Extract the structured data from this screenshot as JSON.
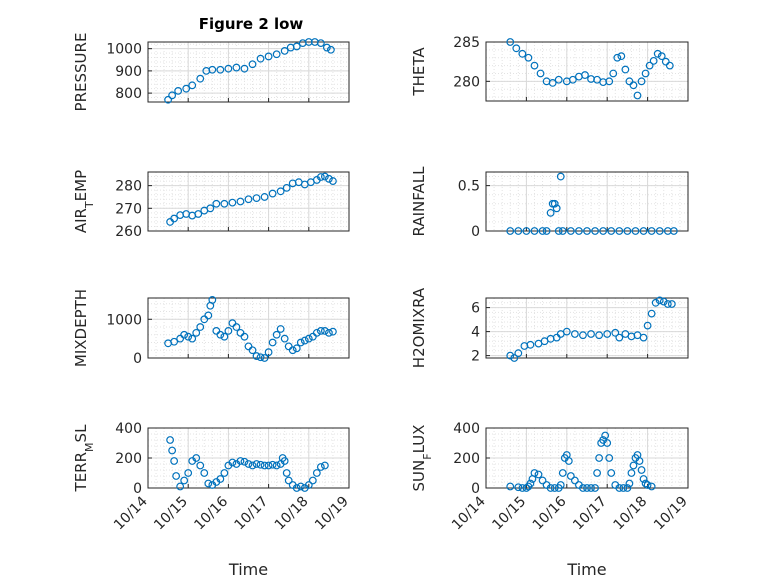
{
  "title": "Figure 2 low",
  "colors": {
    "marker": "#0072BD",
    "axis": "#262626",
    "grid": "#d9d9d9"
  },
  "chart_data": [
    {
      "type": "scatter",
      "ylabel": "PRESSURE",
      "ylim": [
        760,
        1030
      ],
      "yticks": [
        800,
        900,
        1000
      ],
      "points": [
        [
          14.5,
          770
        ],
        [
          14.6,
          790
        ],
        [
          14.75,
          810
        ],
        [
          14.95,
          820
        ],
        [
          15.1,
          835
        ],
        [
          15.3,
          865
        ],
        [
          15.45,
          900
        ],
        [
          15.6,
          905
        ],
        [
          15.8,
          905
        ],
        [
          16.0,
          910
        ],
        [
          16.2,
          915
        ],
        [
          16.4,
          910
        ],
        [
          16.6,
          930
        ],
        [
          16.8,
          955
        ],
        [
          17.0,
          965
        ],
        [
          17.2,
          975
        ],
        [
          17.4,
          990
        ],
        [
          17.55,
          1005
        ],
        [
          17.7,
          1010
        ],
        [
          17.85,
          1025
        ],
        [
          18.0,
          1030
        ],
        [
          18.15,
          1030
        ],
        [
          18.3,
          1025
        ],
        [
          18.45,
          1005
        ],
        [
          18.55,
          995
        ]
      ]
    },
    {
      "type": "scatter",
      "ylabel": "THETA",
      "ylim": [
        277.5,
        285
      ],
      "yticks": [
        280,
        285
      ],
      "points": [
        [
          14.6,
          285
        ],
        [
          14.75,
          284.2
        ],
        [
          14.9,
          283.5
        ],
        [
          15.05,
          283
        ],
        [
          15.2,
          282
        ],
        [
          15.35,
          281
        ],
        [
          15.5,
          280
        ],
        [
          15.65,
          279.8
        ],
        [
          15.8,
          280.2
        ],
        [
          16.0,
          280
        ],
        [
          16.15,
          280.2
        ],
        [
          16.3,
          280.6
        ],
        [
          16.45,
          280.8
        ],
        [
          16.6,
          280.3
        ],
        [
          16.75,
          280.2
        ],
        [
          16.9,
          279.9
        ],
        [
          17.05,
          280
        ],
        [
          17.15,
          281
        ],
        [
          17.25,
          283
        ],
        [
          17.35,
          283.2
        ],
        [
          17.45,
          281.5
        ],
        [
          17.55,
          280
        ],
        [
          17.65,
          279.5
        ],
        [
          17.75,
          278.2
        ],
        [
          17.85,
          280
        ],
        [
          17.95,
          281
        ],
        [
          18.05,
          282
        ],
        [
          18.15,
          282.6
        ],
        [
          18.25,
          283.5
        ],
        [
          18.35,
          283.2
        ],
        [
          18.45,
          282.5
        ],
        [
          18.55,
          282
        ]
      ]
    },
    {
      "type": "scatter",
      "ylabel": "AIR_TEMP",
      "ylim": [
        260,
        286
      ],
      "yticks": [
        260,
        270,
        280
      ],
      "points": [
        [
          14.55,
          264
        ],
        [
          14.65,
          265.5
        ],
        [
          14.8,
          267
        ],
        [
          14.95,
          267.5
        ],
        [
          15.1,
          266.8
        ],
        [
          15.25,
          267.5
        ],
        [
          15.4,
          269
        ],
        [
          15.55,
          270
        ],
        [
          15.7,
          272
        ],
        [
          15.9,
          272
        ],
        [
          16.1,
          272.5
        ],
        [
          16.3,
          273
        ],
        [
          16.5,
          274
        ],
        [
          16.7,
          274.5
        ],
        [
          16.9,
          275
        ],
        [
          17.1,
          276.5
        ],
        [
          17.3,
          277.5
        ],
        [
          17.45,
          279
        ],
        [
          17.6,
          281
        ],
        [
          17.75,
          281.5
        ],
        [
          17.9,
          280.5
        ],
        [
          18.05,
          281.5
        ],
        [
          18.2,
          282.5
        ],
        [
          18.3,
          283.8
        ],
        [
          18.4,
          284
        ],
        [
          18.5,
          283
        ],
        [
          18.6,
          282
        ]
      ]
    },
    {
      "type": "scatter",
      "ylabel": "RAINFALL",
      "ylim": [
        0,
        0.65
      ],
      "yticks": [
        0,
        0.5
      ],
      "points": [
        [
          14.6,
          0
        ],
        [
          14.8,
          0
        ],
        [
          15.0,
          0
        ],
        [
          15.2,
          0
        ],
        [
          15.4,
          0
        ],
        [
          15.5,
          0
        ],
        [
          15.6,
          0.2
        ],
        [
          15.65,
          0.3
        ],
        [
          15.7,
          0.3
        ],
        [
          15.75,
          0.25
        ],
        [
          15.8,
          0
        ],
        [
          15.85,
          0.6
        ],
        [
          15.9,
          0
        ],
        [
          16.1,
          0
        ],
        [
          16.3,
          0
        ],
        [
          16.5,
          0
        ],
        [
          16.7,
          0
        ],
        [
          16.9,
          0
        ],
        [
          17.1,
          0
        ],
        [
          17.3,
          0
        ],
        [
          17.5,
          0
        ],
        [
          17.7,
          0
        ],
        [
          17.9,
          0
        ],
        [
          18.1,
          0
        ],
        [
          18.3,
          0
        ],
        [
          18.5,
          0
        ],
        [
          18.65,
          0
        ]
      ]
    },
    {
      "type": "scatter",
      "ylabel": "MIXDEPTH",
      "ylim": [
        0,
        1550
      ],
      "yticks": [
        0,
        1000
      ],
      "points": [
        [
          14.5,
          380
        ],
        [
          14.65,
          420
        ],
        [
          14.8,
          500
        ],
        [
          14.9,
          600
        ],
        [
          15.0,
          550
        ],
        [
          15.1,
          500
        ],
        [
          15.2,
          650
        ],
        [
          15.3,
          800
        ],
        [
          15.4,
          1000
        ],
        [
          15.5,
          1100
        ],
        [
          15.55,
          1350
        ],
        [
          15.6,
          1500
        ],
        [
          15.7,
          700
        ],
        [
          15.8,
          600
        ],
        [
          15.9,
          550
        ],
        [
          16.0,
          700
        ],
        [
          16.1,
          900
        ],
        [
          16.2,
          800
        ],
        [
          16.3,
          650
        ],
        [
          16.4,
          550
        ],
        [
          16.5,
          300
        ],
        [
          16.6,
          200
        ],
        [
          16.7,
          50
        ],
        [
          16.8,
          20
        ],
        [
          16.9,
          0
        ],
        [
          17.0,
          150
        ],
        [
          17.1,
          400
        ],
        [
          17.2,
          600
        ],
        [
          17.3,
          750
        ],
        [
          17.4,
          500
        ],
        [
          17.5,
          300
        ],
        [
          17.6,
          200
        ],
        [
          17.7,
          250
        ],
        [
          17.8,
          400
        ],
        [
          17.9,
          450
        ],
        [
          18.0,
          500
        ],
        [
          18.1,
          550
        ],
        [
          18.2,
          650
        ],
        [
          18.3,
          700
        ],
        [
          18.4,
          700
        ],
        [
          18.5,
          650
        ],
        [
          18.6,
          680
        ]
      ]
    },
    {
      "type": "scatter",
      "ylabel": "H2OMIXRA",
      "ylim": [
        1.8,
        6.8
      ],
      "yticks": [
        2,
        4,
        6
      ],
      "points": [
        [
          14.6,
          2
        ],
        [
          14.7,
          1.8
        ],
        [
          14.8,
          2.2
        ],
        [
          14.95,
          2.8
        ],
        [
          15.1,
          2.9
        ],
        [
          15.3,
          3.0
        ],
        [
          15.45,
          3.2
        ],
        [
          15.6,
          3.4
        ],
        [
          15.75,
          3.5
        ],
        [
          15.85,
          3.8
        ],
        [
          16.0,
          4.0
        ],
        [
          16.2,
          3.8
        ],
        [
          16.4,
          3.7
        ],
        [
          16.6,
          3.8
        ],
        [
          16.8,
          3.7
        ],
        [
          17.0,
          3.8
        ],
        [
          17.2,
          3.9
        ],
        [
          17.3,
          3.5
        ],
        [
          17.45,
          3.8
        ],
        [
          17.6,
          3.6
        ],
        [
          17.75,
          3.7
        ],
        [
          17.9,
          3.5
        ],
        [
          18.0,
          4.5
        ],
        [
          18.1,
          5.5
        ],
        [
          18.2,
          6.4
        ],
        [
          18.3,
          6.6
        ],
        [
          18.4,
          6.5
        ],
        [
          18.5,
          6.3
        ],
        [
          18.6,
          6.3
        ]
      ]
    },
    {
      "type": "scatter",
      "ylabel": "TERR_MSL",
      "ylim": [
        0,
        400
      ],
      "yticks": [
        0,
        200,
        400
      ],
      "points": [
        [
          14.55,
          320
        ],
        [
          14.6,
          250
        ],
        [
          14.65,
          180
        ],
        [
          14.7,
          80
        ],
        [
          14.8,
          10
        ],
        [
          14.9,
          50
        ],
        [
          15.0,
          100
        ],
        [
          15.1,
          180
        ],
        [
          15.2,
          200
        ],
        [
          15.3,
          150
        ],
        [
          15.4,
          100
        ],
        [
          15.5,
          30
        ],
        [
          15.6,
          20
        ],
        [
          15.7,
          40
        ],
        [
          15.8,
          60
        ],
        [
          15.9,
          100
        ],
        [
          16.0,
          150
        ],
        [
          16.1,
          170
        ],
        [
          16.2,
          160
        ],
        [
          16.3,
          180
        ],
        [
          16.4,
          175
        ],
        [
          16.5,
          160
        ],
        [
          16.6,
          150
        ],
        [
          16.7,
          160
        ],
        [
          16.8,
          155
        ],
        [
          16.9,
          150
        ],
        [
          17.0,
          150
        ],
        [
          17.1,
          155
        ],
        [
          17.2,
          150
        ],
        [
          17.3,
          160
        ],
        [
          17.35,
          200
        ],
        [
          17.4,
          180
        ],
        [
          17.45,
          100
        ],
        [
          17.5,
          50
        ],
        [
          17.6,
          20
        ],
        [
          17.7,
          0
        ],
        [
          17.8,
          10
        ],
        [
          17.9,
          0
        ],
        [
          18.0,
          20
        ],
        [
          18.1,
          50
        ],
        [
          18.2,
          100
        ],
        [
          18.3,
          140
        ],
        [
          18.4,
          150
        ]
      ]
    },
    {
      "type": "scatter",
      "ylabel": "SUN_FLUX",
      "ylim": [
        0,
        400
      ],
      "yticks": [
        0,
        200,
        400
      ],
      "points": [
        [
          14.6,
          10
        ],
        [
          14.8,
          5
        ],
        [
          14.9,
          0
        ],
        [
          15.0,
          0
        ],
        [
          15.05,
          10
        ],
        [
          15.1,
          30
        ],
        [
          15.15,
          60
        ],
        [
          15.2,
          100
        ],
        [
          15.3,
          90
        ],
        [
          15.4,
          50
        ],
        [
          15.5,
          20
        ],
        [
          15.6,
          0
        ],
        [
          15.7,
          0
        ],
        [
          15.8,
          0
        ],
        [
          15.85,
          20
        ],
        [
          15.9,
          100
        ],
        [
          15.95,
          200
        ],
        [
          16.0,
          220
        ],
        [
          16.05,
          180
        ],
        [
          16.1,
          80
        ],
        [
          16.2,
          50
        ],
        [
          16.3,
          20
        ],
        [
          16.4,
          0
        ],
        [
          16.5,
          0
        ],
        [
          16.6,
          0
        ],
        [
          16.7,
          0
        ],
        [
          16.75,
          100
        ],
        [
          16.8,
          200
        ],
        [
          16.85,
          300
        ],
        [
          16.9,
          320
        ],
        [
          16.95,
          350
        ],
        [
          17.0,
          300
        ],
        [
          17.05,
          200
        ],
        [
          17.1,
          100
        ],
        [
          17.2,
          20
        ],
        [
          17.3,
          0
        ],
        [
          17.4,
          0
        ],
        [
          17.5,
          0
        ],
        [
          17.55,
          30
        ],
        [
          17.6,
          100
        ],
        [
          17.65,
          150
        ],
        [
          17.7,
          200
        ],
        [
          17.75,
          220
        ],
        [
          17.8,
          180
        ],
        [
          17.85,
          120
        ],
        [
          17.9,
          60
        ],
        [
          17.95,
          30
        ],
        [
          18.0,
          20
        ],
        [
          18.1,
          10
        ]
      ]
    }
  ],
  "xaxis": {
    "label": "Time",
    "xlim": [
      14,
      19
    ],
    "ticks": [
      14,
      15,
      16,
      17,
      18,
      19
    ],
    "ticklabels": [
      "10/14",
      "10/15",
      "10/16",
      "10/17",
      "10/18",
      "10/19"
    ]
  }
}
